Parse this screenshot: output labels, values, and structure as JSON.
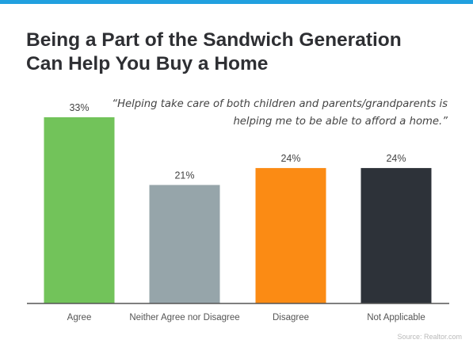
{
  "header": {
    "title_lines": [
      "Being a Part of the Sandwich Generation",
      "Can Help You Buy a Home"
    ]
  },
  "quote": {
    "lines": [
      "“Helping take care of both children and parents/grandparents is",
      "helping me to be able to afford a home.”"
    ]
  },
  "source": "Source: Realtor.com",
  "colors": {
    "accent_bar": "#21a0df",
    "agree": "#72c35a",
    "neither": "#96a5aa",
    "disagree": "#fb8b14",
    "not_applicable": "#2d3239"
  },
  "chart_data": {
    "type": "bar",
    "categories": [
      "Agree",
      "Neither Agree nor Disagree",
      "Disagree",
      "Not Applicable"
    ],
    "values": [
      33,
      21,
      24,
      24
    ],
    "value_labels": [
      "33%",
      "21%",
      "24%",
      "24%"
    ],
    "bar_colors": [
      "#72c35a",
      "#96a5aa",
      "#fb8b14",
      "#2d3239"
    ],
    "ylim": [
      0,
      33
    ],
    "grid": false,
    "legend": "none"
  }
}
